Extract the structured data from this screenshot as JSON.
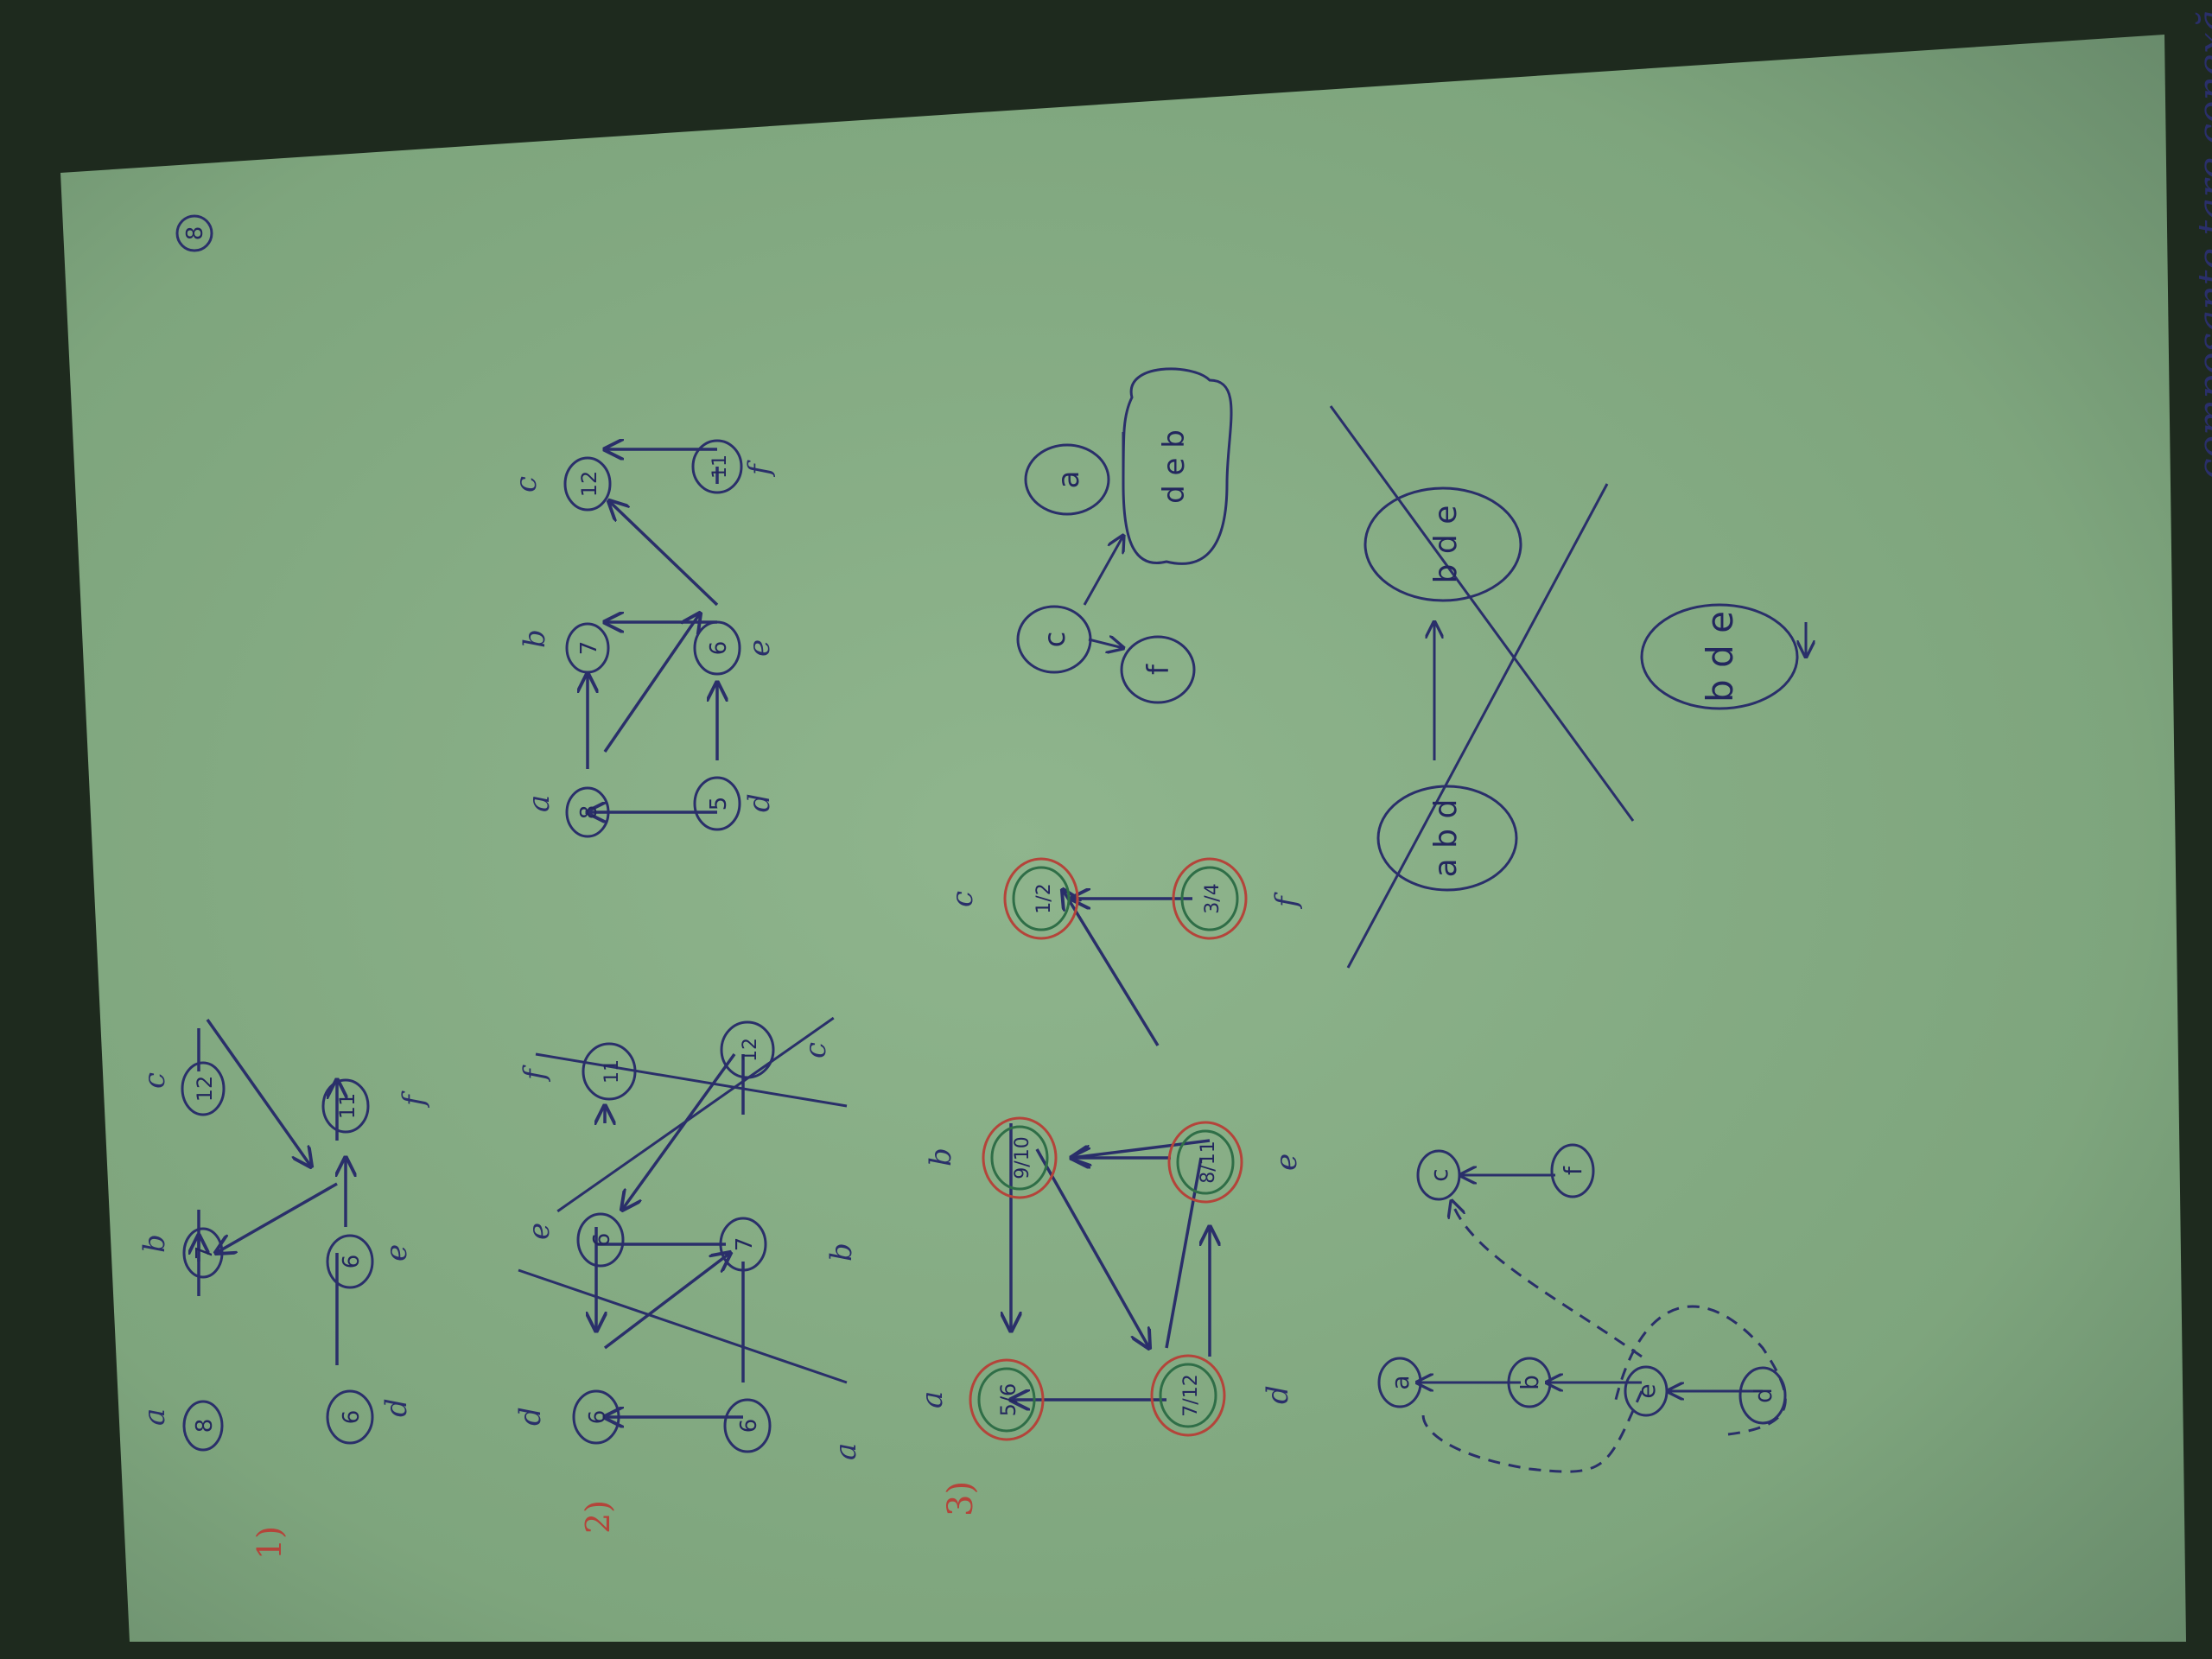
{
  "page": {
    "number": "8"
  },
  "colors": {
    "desk": "#1e2a1e",
    "paper": "#7fa57f",
    "ink": "#2a2f6a",
    "red_ink": "#b4443a",
    "green_ink": "#2f6e47"
  },
  "sections": {
    "s1": {
      "marker": "1)",
      "nodes": [
        {
          "id": "a",
          "label": "a",
          "value": "8"
        },
        {
          "id": "b",
          "label": "b",
          "value": "7"
        },
        {
          "id": "c",
          "label": "c",
          "value": "12"
        },
        {
          "id": "d",
          "label": "d",
          "value": "6"
        },
        {
          "id": "e",
          "label": "e",
          "value": "6"
        },
        {
          "id": "f",
          "label": "f",
          "value": "11"
        }
      ]
    },
    "s2a": {
      "marker": "2)",
      "nodes": [
        {
          "id": "d",
          "label": "d",
          "value": "6"
        },
        {
          "id": "e",
          "label": "e",
          "value": "6"
        },
        {
          "id": "f",
          "label": "f",
          "value": "11"
        },
        {
          "id": "a",
          "label": "a",
          "value": "6"
        },
        {
          "id": "b",
          "label": "b",
          "value": "7"
        },
        {
          "id": "c",
          "label": "c",
          "value": "12"
        }
      ]
    },
    "s2b": {
      "nodes": [
        {
          "id": "a",
          "label": "a",
          "value": "8"
        },
        {
          "id": "b",
          "label": "b",
          "value": "7"
        },
        {
          "id": "c",
          "label": "c",
          "value": "12"
        },
        {
          "id": "d",
          "label": "d",
          "value": "5"
        },
        {
          "id": "e",
          "label": "e",
          "value": "6"
        },
        {
          "id": "f",
          "label": "f",
          "value": "11"
        }
      ]
    },
    "s3": {
      "marker": "3)",
      "nodes": [
        {
          "id": "a",
          "label": "a",
          "value": "5/6"
        },
        {
          "id": "b",
          "label": "b",
          "value": "9/10"
        },
        {
          "id": "c",
          "label": "c",
          "value": "1/2"
        },
        {
          "id": "d",
          "label": "d",
          "value": "7/12"
        },
        {
          "id": "e",
          "label": "e",
          "value": "8/11"
        },
        {
          "id": "f",
          "label": "f",
          "value": "3/4"
        }
      ]
    },
    "s3_tree": {
      "nodes": [
        {
          "id": "a",
          "value": "a"
        },
        {
          "id": "b",
          "value": "b"
        },
        {
          "id": "e",
          "value": "e"
        },
        {
          "id": "d",
          "value": "d"
        },
        {
          "id": "c",
          "value": "c"
        },
        {
          "id": "f",
          "value": "f"
        }
      ]
    },
    "components": {
      "blob_a": "a",
      "blob_deb": "d e b",
      "blob_c": "c",
      "blob_f": "f",
      "crossed_1": "a b d",
      "crossed_2": "b d e",
      "result": "b d e",
      "caption": "composante tare conexă"
    }
  }
}
